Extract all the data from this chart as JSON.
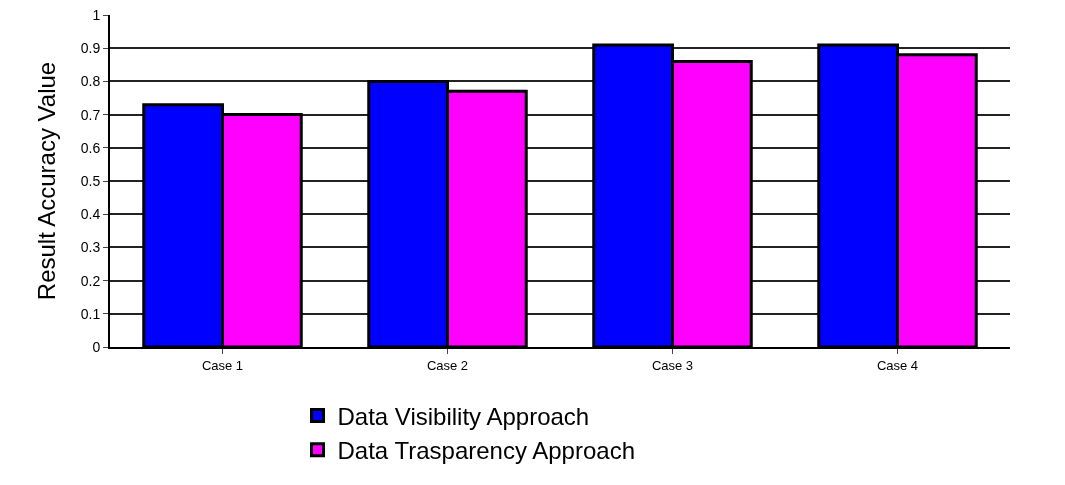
{
  "chart_data": {
    "type": "bar",
    "ylabel": "Result Accuracy Value",
    "categories": [
      "Case 1",
      "Case 2",
      "Case 3",
      "Case 4"
    ],
    "series": [
      {
        "name": "Data Visibility Approach",
        "color": "#0000ff",
        "values": [
          0.73,
          0.8,
          0.91,
          0.91
        ]
      },
      {
        "name": "Data Trasparency Approach",
        "color": "#ff00ff",
        "values": [
          0.7,
          0.77,
          0.86,
          0.88
        ]
      }
    ],
    "ylim": [
      0,
      1
    ],
    "yticks": [
      0,
      0.1,
      0.2,
      0.3,
      0.4,
      0.5,
      0.6,
      0.7,
      0.8,
      0.9,
      1
    ],
    "grid": "y",
    "legend": "bottom"
  }
}
